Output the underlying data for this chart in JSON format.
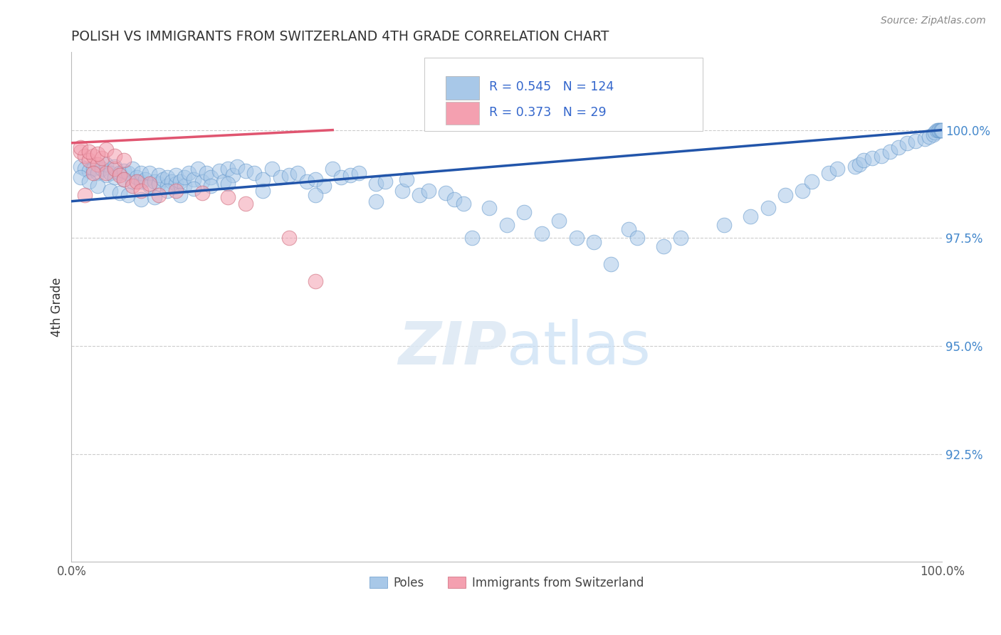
{
  "title": "POLISH VS IMMIGRANTS FROM SWITZERLAND 4TH GRADE CORRELATION CHART",
  "source": "Source: ZipAtlas.com",
  "ylabel": "4th Grade",
  "xlim": [
    0.0,
    100.0
  ],
  "ylim": [
    90.0,
    101.8
  ],
  "legend_blue_label": "Poles",
  "legend_pink_label": "Immigrants from Switzerland",
  "blue_R": 0.545,
  "blue_N": 124,
  "pink_R": 0.373,
  "pink_N": 29,
  "blue_color": "#A8C8E8",
  "pink_color": "#F4A0B0",
  "blue_line_color": "#2255AA",
  "pink_line_color": "#E05570",
  "yticks": [
    92.5,
    95.0,
    97.5,
    100.0
  ],
  "blue_trend_x0": 0,
  "blue_trend_y0": 98.35,
  "blue_trend_x1": 100,
  "blue_trend_y1": 100.0,
  "pink_trend_x0": 0,
  "pink_trend_y0": 99.7,
  "pink_trend_x1": 30,
  "pink_trend_y1": 100.0,
  "blue_points": [
    [
      1,
      99.15
    ],
    [
      1.5,
      99.1
    ],
    [
      2,
      99.05
    ],
    [
      2.5,
      99.1
    ],
    [
      3,
      99.0
    ],
    [
      3.5,
      99.1
    ],
    [
      4,
      98.95
    ],
    [
      4,
      99.2
    ],
    [
      4.5,
      99.0
    ],
    [
      5,
      98.9
    ],
    [
      5,
      99.15
    ],
    [
      5.5,
      99.0
    ],
    [
      6,
      98.85
    ],
    [
      6,
      99.05
    ],
    [
      6.5,
      99.0
    ],
    [
      7,
      98.8
    ],
    [
      7,
      99.1
    ],
    [
      7.5,
      98.9
    ],
    [
      8,
      98.8
    ],
    [
      8,
      99.0
    ],
    [
      8.5,
      98.85
    ],
    [
      9,
      98.7
    ],
    [
      9,
      99.0
    ],
    [
      9.5,
      98.8
    ],
    [
      10,
      98.75
    ],
    [
      10,
      98.95
    ],
    [
      10.5,
      98.85
    ],
    [
      11,
      98.7
    ],
    [
      11,
      98.9
    ],
    [
      11.5,
      98.8
    ],
    [
      12,
      98.75
    ],
    [
      12,
      98.95
    ],
    [
      12.5,
      98.8
    ],
    [
      13,
      98.7
    ],
    [
      13,
      98.9
    ],
    [
      13.5,
      99.0
    ],
    [
      14,
      98.85
    ],
    [
      14.5,
      99.1
    ],
    [
      15,
      98.8
    ],
    [
      15.5,
      99.0
    ],
    [
      16,
      98.9
    ],
    [
      17,
      99.05
    ],
    [
      17.5,
      98.8
    ],
    [
      18,
      99.1
    ],
    [
      18.5,
      98.95
    ],
    [
      19,
      99.15
    ],
    [
      20,
      99.05
    ],
    [
      21,
      99.0
    ],
    [
      22,
      98.85
    ],
    [
      23,
      99.1
    ],
    [
      24,
      98.9
    ],
    [
      25,
      98.95
    ],
    [
      26,
      99.0
    ],
    [
      27,
      98.8
    ],
    [
      28,
      98.85
    ],
    [
      29,
      98.7
    ],
    [
      30,
      99.1
    ],
    [
      31,
      98.9
    ],
    [
      32,
      98.95
    ],
    [
      33,
      99.0
    ],
    [
      35,
      98.75
    ],
    [
      36,
      98.8
    ],
    [
      38,
      98.6
    ],
    [
      38.5,
      98.85
    ],
    [
      40,
      98.5
    ],
    [
      41,
      98.6
    ],
    [
      43,
      98.55
    ],
    [
      44,
      98.4
    ],
    [
      45,
      98.3
    ],
    [
      46,
      97.5
    ],
    [
      48,
      98.2
    ],
    [
      50,
      97.8
    ],
    [
      52,
      98.1
    ],
    [
      54,
      97.6
    ],
    [
      56,
      97.9
    ],
    [
      58,
      97.5
    ],
    [
      60,
      97.4
    ],
    [
      62,
      96.9
    ],
    [
      64,
      97.7
    ],
    [
      65,
      97.5
    ],
    [
      68,
      97.3
    ],
    [
      70,
      97.5
    ],
    [
      75,
      97.8
    ],
    [
      78,
      98.0
    ],
    [
      80,
      98.2
    ],
    [
      82,
      98.5
    ],
    [
      84,
      98.6
    ],
    [
      85,
      98.8
    ],
    [
      87,
      99.0
    ],
    [
      88,
      99.1
    ],
    [
      90,
      99.15
    ],
    [
      90.5,
      99.2
    ],
    [
      91,
      99.3
    ],
    [
      92,
      99.35
    ],
    [
      93,
      99.4
    ],
    [
      94,
      99.5
    ],
    [
      95,
      99.6
    ],
    [
      96,
      99.7
    ],
    [
      97,
      99.75
    ],
    [
      98,
      99.8
    ],
    [
      98.5,
      99.85
    ],
    [
      99,
      99.9
    ],
    [
      99.2,
      99.95
    ],
    [
      99.4,
      100.0
    ],
    [
      99.6,
      100.0
    ],
    [
      99.7,
      100.0
    ],
    [
      99.8,
      100.0
    ],
    [
      99.9,
      100.0
    ],
    [
      100,
      100.0
    ],
    [
      1,
      98.9
    ],
    [
      2,
      98.8
    ],
    [
      3,
      98.7
    ],
    [
      4.5,
      98.6
    ],
    [
      5.5,
      98.55
    ],
    [
      6.5,
      98.5
    ],
    [
      8,
      98.4
    ],
    [
      9.5,
      98.45
    ],
    [
      11,
      98.6
    ],
    [
      12.5,
      98.5
    ],
    [
      14,
      98.65
    ],
    [
      16,
      98.7
    ],
    [
      18,
      98.75
    ],
    [
      22,
      98.6
    ],
    [
      28,
      98.5
    ],
    [
      35,
      98.35
    ]
  ],
  "pink_points": [
    [
      1,
      99.5
    ],
    [
      1.5,
      99.4
    ],
    [
      2,
      99.3
    ],
    [
      2.5,
      99.4
    ],
    [
      3,
      99.2
    ],
    [
      3.5,
      99.35
    ],
    [
      4,
      99.0
    ],
    [
      5,
      99.1
    ],
    [
      5.5,
      98.95
    ],
    [
      6,
      98.85
    ],
    [
      7,
      98.7
    ],
    [
      7.5,
      98.8
    ],
    [
      8,
      98.6
    ],
    [
      9,
      98.75
    ],
    [
      10,
      98.5
    ],
    [
      12,
      98.6
    ],
    [
      15,
      98.55
    ],
    [
      18,
      98.45
    ],
    [
      20,
      98.3
    ],
    [
      25,
      97.5
    ],
    [
      28,
      96.5
    ],
    [
      1,
      99.6
    ],
    [
      2,
      99.5
    ],
    [
      3,
      99.45
    ],
    [
      4,
      99.55
    ],
    [
      5,
      99.4
    ],
    [
      6,
      99.3
    ],
    [
      1.5,
      98.5
    ],
    [
      2.5,
      99.0
    ]
  ]
}
